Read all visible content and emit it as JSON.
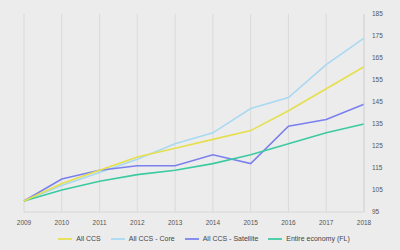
{
  "chart_data": {
    "type": "line",
    "categories": [
      "2009",
      "2010",
      "2011",
      "2012",
      "2013",
      "2014",
      "2015",
      "2016",
      "2017",
      "2018"
    ],
    "series": [
      {
        "name": "All CCS - Core",
        "color": "#a9d9f2",
        "values": [
          100,
          107,
          113,
          119,
          126,
          131,
          142,
          147,
          162,
          174
        ]
      },
      {
        "name": "All CCS - Satellite",
        "color": "#7b80ee",
        "values": [
          100,
          110,
          114,
          116,
          116,
          121,
          117,
          134,
          137,
          144
        ]
      },
      {
        "name": "Entire economy (FL)",
        "color": "#3ccaa0",
        "values": [
          100,
          105,
          109,
          112,
          114,
          117,
          121,
          126,
          131,
          135
        ]
      },
      {
        "name": "All CCS",
        "color": "#e6df4c",
        "values": [
          100,
          108,
          114,
          120,
          124,
          128,
          132,
          141,
          151,
          161
        ]
      }
    ],
    "ylim": [
      95,
      185
    ],
    "yticks": [
      95,
      105,
      115,
      125,
      135,
      145,
      155,
      165,
      175,
      185
    ],
    "grid": "x",
    "legend": "bottom"
  }
}
